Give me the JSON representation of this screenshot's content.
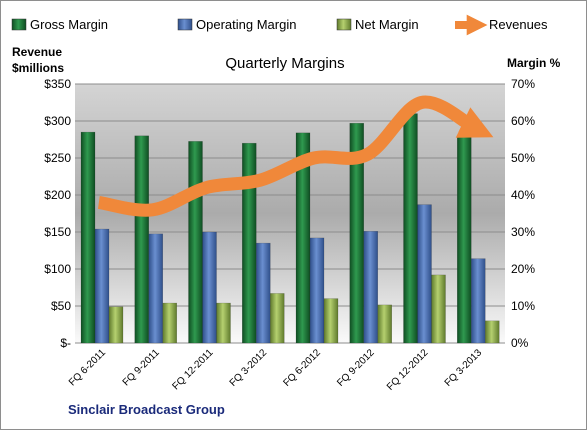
{
  "chart_data": {
    "type": "bar",
    "title": "Quarterly Margins",
    "company": "Sinclair Broadcast Group",
    "categories": [
      "FQ 6-2011",
      "FQ 9-2011",
      "FQ 12-2011",
      "FQ 3-2012",
      "FQ 6-2012",
      "FQ 9-2012",
      "FQ 12-2012",
      "FQ 3-2013"
    ],
    "series": [
      {
        "name": "Gross Margin",
        "axis": "right",
        "color": "#1E7B3C",
        "values": [
          57,
          56,
          54.5,
          54,
          56.8,
          59.4,
          62,
          55.8
        ]
      },
      {
        "name": "Operating Margin",
        "axis": "right",
        "color": "#4F74B5",
        "values": [
          30.8,
          29.5,
          30,
          27,
          28.4,
          30.2,
          37.4,
          22.8
        ]
      },
      {
        "name": "Net Margin",
        "axis": "right",
        "color": "#9BBB59",
        "values": [
          9.8,
          10.8,
          10.8,
          13.4,
          12,
          10.3,
          18.4,
          6
        ]
      }
    ],
    "line_series": {
      "name": "Revenues",
      "axis": "left",
      "color": "#F0883A",
      "values": [
        190,
        180,
        210,
        220,
        250,
        255,
        325,
        290
      ]
    },
    "left_axis": {
      "label_line1": "Revenue",
      "label_line2": "$millions",
      "min": 0,
      "max": 350,
      "step": 50,
      "tick_labels": [
        "$-",
        "$50",
        "$100",
        "$150",
        "$200",
        "$250",
        "$300",
        "$350"
      ]
    },
    "right_axis": {
      "label": "Margin %",
      "min": 0,
      "max": 70,
      "step": 10,
      "tick_labels": [
        "0%",
        "10%",
        "20%",
        "30%",
        "40%",
        "50%",
        "60%",
        "70%"
      ]
    },
    "grid": true,
    "legend_position": "top",
    "legend": [
      "Gross Margin",
      "Operating Margin",
      "Net Margin",
      "Revenues"
    ]
  }
}
